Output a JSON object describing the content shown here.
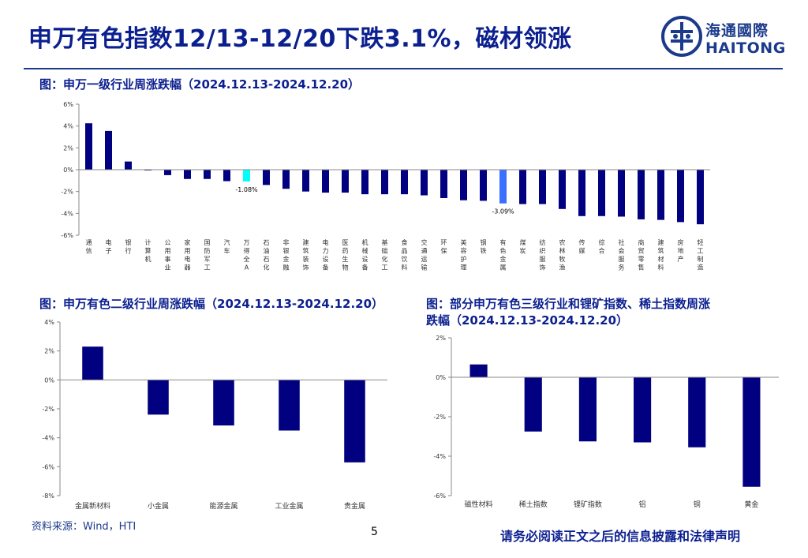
{
  "page": {
    "title": "申万有色指数12/13-12/20下跌3.1%，磁材领涨",
    "logo_cn": "海通國際",
    "logo_en": "HAITONG",
    "source_label": "资料来源：",
    "source_value": "Wind，HTI",
    "page_number": "5",
    "disclaimer": "请务必阅读正文之后的信息披露和法律声明",
    "colors": {
      "title": "#0b1f8f",
      "bar": "#000080",
      "highlight_cyan": "#00ffff",
      "highlight_blue": "#3a6fff"
    }
  },
  "charts": {
    "top": {
      "title": "图：申万一级行业周涨跌幅（2024.12.13-2024.12.20）"
    },
    "bottom_left": {
      "title": "图：申万有色二级行业周涨跌幅（2024.12.13-2024.12.20）"
    },
    "bottom_right": {
      "title_line1": "图：部分申万有色三级行业和锂矿指数、稀土指数周涨",
      "title_line2": "跌幅（2024.12.13-2024.12.20）"
    }
  },
  "chart_data": [
    {
      "id": "top",
      "type": "bar",
      "title": "申万一级行业周涨跌幅（2024.12.13-2024.12.20）",
      "categories": [
        "通信",
        "电子",
        "银行",
        "计算机",
        "公用事业",
        "家用电器",
        "国防军工",
        "汽车",
        "万得全A",
        "石油石化",
        "非银金融",
        "建筑装饰",
        "电力设备",
        "医药生物",
        "机械设备",
        "基础化工",
        "食品饮料",
        "交通运输",
        "环保",
        "美容护理",
        "钢铁",
        "有色金属",
        "煤炭",
        "纺织服饰",
        "农林牧渔",
        "传媒",
        "综合",
        "社会服务",
        "商贸零售",
        "建筑材料",
        "房地产",
        "轻工制造"
      ],
      "values": [
        4.25,
        3.55,
        0.75,
        -0.05,
        -0.5,
        -0.85,
        -0.85,
        -1.05,
        -1.08,
        -1.4,
        -1.75,
        -2.0,
        -2.1,
        -2.1,
        -2.25,
        -2.25,
        -2.25,
        -2.35,
        -2.6,
        -2.8,
        -2.85,
        -3.09,
        -3.15,
        -3.15,
        -3.6,
        -4.25,
        -4.25,
        -4.3,
        -4.55,
        -4.6,
        -4.8,
        -5.0
      ],
      "highlights": {
        "万得全A": "#00ffff",
        "有色金属": "#3a6fff"
      },
      "data_labels": {
        "万得全A": "-1.08%",
        "有色金属": "-3.09%"
      },
      "yticks": [
        "6%",
        "4%",
        "2%",
        "0%",
        "-2%",
        "-4%",
        "-6%"
      ],
      "ylim": [
        -6,
        6
      ]
    },
    {
      "id": "bottom_left",
      "type": "bar",
      "title": "申万有色二级行业周涨跌幅（2024.12.13-2024.12.20）",
      "categories": [
        "金属新材料",
        "小金属",
        "能源金属",
        "工业金属",
        "贵金属"
      ],
      "values": [
        2.3,
        -2.4,
        -3.15,
        -3.5,
        -5.7
      ],
      "yticks": [
        "4%",
        "2%",
        "0%",
        "-2%",
        "-4%",
        "-6%",
        "-8%"
      ],
      "ylim": [
        -8,
        4
      ]
    },
    {
      "id": "bottom_right",
      "type": "bar",
      "title": "部分申万有色三级行业和锂矿指数、稀土指数周涨跌幅（2024.12.13-2024.12.20）",
      "categories": [
        "磁性材料",
        "稀土指数",
        "锂矿指数",
        "铝",
        "铜",
        "黄金"
      ],
      "values": [
        0.65,
        -2.75,
        -3.25,
        -3.3,
        -3.55,
        -5.55
      ],
      "yticks": [
        "2%",
        "0%",
        "-2%",
        "-4%",
        "-6%"
      ],
      "ylim": [
        -6,
        2
      ]
    }
  ]
}
